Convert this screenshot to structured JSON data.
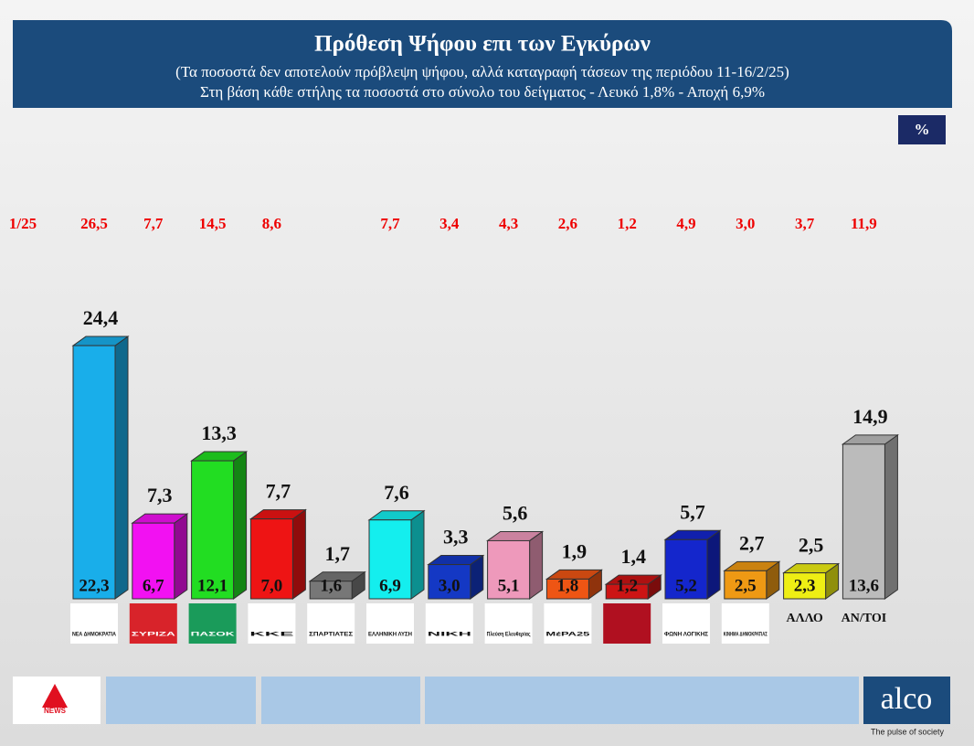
{
  "chart_data": {
    "type": "bar3d",
    "title": "Πρόθεση Ψήφου επι των Εγκύρων",
    "subtitle": "(Τα ποσοστά δεν αποτελούν πρόβλεψη ψήφου, αλλά καταγραφή τάσεων της περιόδου  11-16/2/25)",
    "note": "Στη βάση κάθε στήλης τα ποσοστά στο σύνολο του δείγματος - Λευκό 1,8% - Αποχή 6,9%",
    "badge": "%",
    "categories": [
      "ΝΕΑ ΔΗΜΟΚΡΑΤΙΑ",
      "ΣΥΡΙΖΑ",
      "ΠΑΣΟΚ",
      "ΚΚΕ",
      "ΣΠΑΡΤΙΑΤΕΣ",
      "ΕΛΛΗΝΙΚΗ ΛΥΣΗ",
      "ΝΙΚΗ",
      "Πλεύση Ελευθερίας",
      "ΜέΡΑ25",
      null,
      "ΦΩΝΗ ΛΟΓΙΚΗΣ",
      "ΚΙΝΗΜΑ ΔΗΜΟΚΡΑΤΙΑΣ",
      "ΑΛΛΟ",
      "ΑΝ/ΤΟΙ"
    ],
    "values": [
      24.4,
      7.3,
      13.3,
      7.7,
      1.7,
      7.6,
      3.3,
      5.6,
      1.9,
      1.4,
      5.7,
      2.7,
      2.5,
      14.9
    ],
    "value_labels": [
      "24,4",
      "7,3",
      "13,3",
      "7,7",
      "1,7",
      "7,6",
      "3,3",
      "5,6",
      "1,9",
      "1,4",
      "5,7",
      "2,7",
      "2,5",
      "14,9"
    ],
    "sample_values": [
      22.3,
      6.7,
      12.1,
      7.0,
      1.6,
      6.9,
      3.0,
      5.1,
      1.8,
      1.2,
      5.2,
      2.5,
      2.3,
      13.6
    ],
    "sample_value_labels": [
      "22,3",
      "6,7",
      "12,1",
      "7,0",
      "1,6",
      "6,9",
      "3,0",
      "5,1",
      "1,8",
      "1,2",
      "5,2",
      "2,5",
      "2,3",
      "13,6"
    ],
    "previous": {
      "label": "1/25",
      "values": [
        26.5,
        7.7,
        14.5,
        8.6,
        null,
        7.7,
        3.4,
        4.3,
        2.6,
        1.2,
        4.9,
        3.0,
        3.7,
        11.9
      ],
      "value_labels": [
        "26,5",
        "7,7",
        "14,5",
        "8,6",
        null,
        "7,7",
        "3,4",
        "4,3",
        "2,6",
        "1,2",
        "4,9",
        "3,0",
        "3,7",
        "11,9"
      ]
    },
    "colors": [
      "#19aeea",
      "#f211f2",
      "#22dd22",
      "#ee1414",
      "#777777",
      "#14eeee",
      "#1438c4",
      "#ee99bb",
      "#ee5514",
      "#cc1414",
      "#1426cc",
      "#ee9914",
      "#eeee14",
      "#bbbbbb"
    ]
  },
  "branding": {
    "channel": "NEWS",
    "brand": "alco",
    "tagline": "The pulse of society"
  }
}
